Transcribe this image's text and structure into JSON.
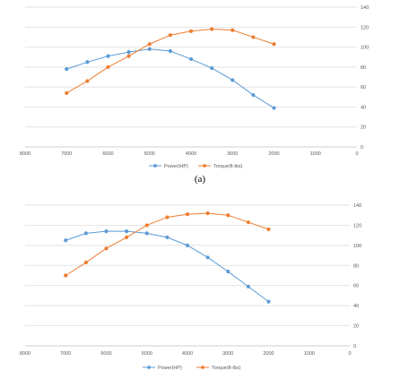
{
  "caption_a": "(a)",
  "colors": {
    "power": "#5b9bd5",
    "torque": "#ed7d31",
    "grid": "#d9d9d9",
    "axis_text": "#595959"
  },
  "chart_data": [
    {
      "type": "line",
      "x_reversed": true,
      "xlim": [
        0,
        8000
      ],
      "ylim": [
        0,
        140
      ],
      "x_ticks": [
        8000,
        7000,
        6000,
        5000,
        4000,
        3000,
        2000,
        1000,
        0
      ],
      "y_ticks": [
        0,
        20,
        40,
        60,
        80,
        100,
        120,
        140
      ],
      "y_axis_side": "right",
      "grid": "horizontal",
      "legend_position": "bottom",
      "x": [
        7000,
        6500,
        6000,
        5500,
        5000,
        4500,
        4000,
        3500,
        3000,
        2500,
        2000
      ],
      "series": [
        {
          "name": "Power(HP)",
          "color": "#5b9bd5",
          "values": [
            78,
            85,
            91,
            95,
            98,
            96,
            88,
            79,
            67,
            52,
            39
          ]
        },
        {
          "name": "Torque(ft-lbs)",
          "color": "#ed7d31",
          "values": [
            54,
            66,
            80,
            91,
            103,
            112,
            116,
            118,
            117,
            110,
            103
          ]
        }
      ]
    },
    {
      "type": "line",
      "x_reversed": true,
      "xlim": [
        0,
        8000
      ],
      "ylim": [
        0,
        140
      ],
      "x_ticks": [
        8000,
        7000,
        6000,
        5000,
        4000,
        3000,
        2000,
        1000,
        0
      ],
      "y_ticks": [
        0,
        20,
        40,
        60,
        80,
        100,
        120,
        140
      ],
      "y_axis_side": "right",
      "grid": "horizontal",
      "legend_position": "bottom",
      "x": [
        7000,
        6500,
        6000,
        5500,
        5000,
        4500,
        4000,
        3500,
        3000,
        2500,
        2000
      ],
      "series": [
        {
          "name": "Power(HP)",
          "color": "#5b9bd5",
          "values": [
            105,
            112,
            114,
            114,
            112,
            108,
            100,
            88,
            74,
            59,
            44
          ]
        },
        {
          "name": "Torque(ft-lbs)",
          "color": "#ed7d31",
          "values": [
            70,
            83,
            97,
            108,
            120,
            128,
            131,
            132,
            130,
            123,
            116
          ]
        }
      ]
    }
  ]
}
